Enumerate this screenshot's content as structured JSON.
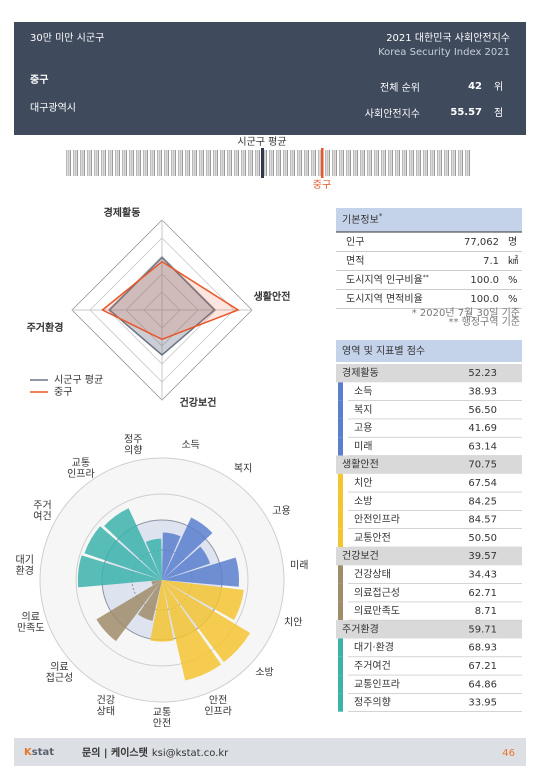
{
  "header": {
    "category": "30만 미만 시군구",
    "title": "2021 대한민국 사회안전지수",
    "subtitle": "Korea Security Index 2021",
    "region": "중구",
    "province": "대구광역시",
    "rank_label": "전체 순위",
    "rank": 42,
    "rank_unit": "위",
    "index_label": "사회안전지수",
    "index": 55.57,
    "index_unit": "점"
  },
  "barcode": {
    "average_label": "시군구 평균",
    "region_label": "중구"
  },
  "radar": {
    "legend_average": "시군구 평균",
    "legend_region": "중구",
    "average": [
      55,
      55,
      50,
      55
    ],
    "rlim": [
      20,
      80
    ],
    "average_color": "#6b7485",
    "region_color": "#e8562a"
  },
  "basic_info": {
    "title": "기본정보",
    "title_mark": "*",
    "rows": [
      {
        "name": "인구",
        "value": "77,062",
        "unit": "명"
      },
      {
        "name": "면적",
        "value": "7.1",
        "unit": "㎢"
      },
      {
        "name": "도시지역 인구비율",
        "mark": "**",
        "value": "100.0",
        "unit": "%"
      },
      {
        "name": "도시지역 면적비율",
        "value": "100.0",
        "unit": "%"
      }
    ],
    "notes": [
      "* 2020년 7월 30일 기준",
      "** 행정구역 기준"
    ]
  },
  "scores": {
    "title": "영역 및 지표별 점수",
    "rlim": [
      0,
      100
    ],
    "domains": [
      {
        "name": "경제활동",
        "score": 52.23,
        "color": "#5b7fcf",
        "indicators": [
          {
            "name": "소득",
            "score": 38.93,
            "polar_label": [
              "소득"
            ]
          },
          {
            "name": "복지",
            "score": 56.5,
            "label": "56.50",
            "polar_label": [
              "복지"
            ]
          },
          {
            "name": "고용",
            "score": 41.69,
            "polar_label": [
              "고용"
            ]
          },
          {
            "name": "미래",
            "score": 63.14,
            "polar_label": [
              "미래"
            ]
          }
        ]
      },
      {
        "name": "생활안전",
        "score": 70.75,
        "color": "#f5c431",
        "indicators": [
          {
            "name": "치안",
            "score": 67.54,
            "polar_label": [
              "치안"
            ]
          },
          {
            "name": "소방",
            "score": 84.25,
            "polar_label": [
              "소방"
            ]
          },
          {
            "name": "안전인프라",
            "score": 84.57,
            "polar_label": [
              "안전",
              "인프라"
            ]
          },
          {
            "name": "교통안전",
            "score": 50.5,
            "label": "50.50",
            "polar_label": [
              "교통",
              "안전"
            ]
          }
        ]
      },
      {
        "name": "건강보건",
        "score": 39.57,
        "color": "#a08c6a",
        "indicators": [
          {
            "name": "건강상태",
            "score": 34.43,
            "polar_label": [
              "건강",
              "상태"
            ]
          },
          {
            "name": "의료접근성",
            "score": 62.71,
            "polar_label": [
              "의료",
              "접근성"
            ]
          },
          {
            "name": "의료만족도",
            "score": 8.71,
            "polar_label": [
              "의료",
              "만족도"
            ]
          }
        ]
      },
      {
        "name": "주거환경",
        "score": 59.71,
        "color": "#3bb3aa",
        "indicators": [
          {
            "name": "대기·환경",
            "score": 68.93,
            "polar_label": [
              "대기",
              "환경"
            ]
          },
          {
            "name": "주거여건",
            "score": 67.21,
            "polar_label": [
              "주거",
              "여건"
            ]
          },
          {
            "name": "교통인프라",
            "score": 64.86,
            "polar_label": [
              "교통",
              "인프라"
            ]
          },
          {
            "name": "정주의향",
            "score": 33.95,
            "polar_label": [
              "정주",
              "의향"
            ]
          }
        ]
      }
    ]
  },
  "footer": {
    "logo_k": "K",
    "logo_rest": "stat",
    "contact": "문의 | 케이스탯",
    "email": "ksi@kstat.co.kr",
    "page": "46"
  }
}
